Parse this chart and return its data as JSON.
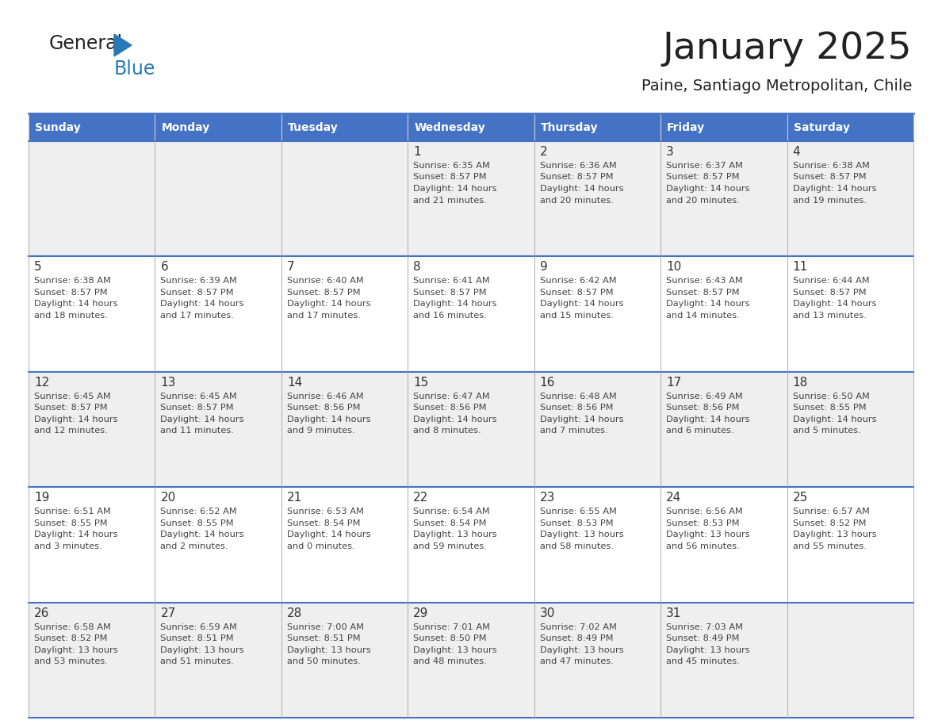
{
  "title": "January 2025",
  "subtitle": "Paine, Santiago Metropolitan, Chile",
  "days_of_week": [
    "Sunday",
    "Monday",
    "Tuesday",
    "Wednesday",
    "Thursday",
    "Friday",
    "Saturday"
  ],
  "header_bg": "#4472C4",
  "header_text": "#FFFFFF",
  "row_bg_odd": "#EFEFEF",
  "row_bg_even": "#FFFFFF",
  "cell_text_color": "#444444",
  "day_number_color": "#333333",
  "logo_general_color": "#222222",
  "logo_blue_color": "#2979B8",
  "calendar": [
    [
      null,
      null,
      null,
      {
        "day": 1,
        "sunrise": "6:35 AM",
        "sunset": "8:57 PM",
        "daylight_h": "14 hours",
        "daylight_m": "and 21 minutes."
      },
      {
        "day": 2,
        "sunrise": "6:36 AM",
        "sunset": "8:57 PM",
        "daylight_h": "14 hours",
        "daylight_m": "and 20 minutes."
      },
      {
        "day": 3,
        "sunrise": "6:37 AM",
        "sunset": "8:57 PM",
        "daylight_h": "14 hours",
        "daylight_m": "and 20 minutes."
      },
      {
        "day": 4,
        "sunrise": "6:38 AM",
        "sunset": "8:57 PM",
        "daylight_h": "14 hours",
        "daylight_m": "and 19 minutes."
      }
    ],
    [
      {
        "day": 5,
        "sunrise": "6:38 AM",
        "sunset": "8:57 PM",
        "daylight_h": "14 hours",
        "daylight_m": "and 18 minutes."
      },
      {
        "day": 6,
        "sunrise": "6:39 AM",
        "sunset": "8:57 PM",
        "daylight_h": "14 hours",
        "daylight_m": "and 17 minutes."
      },
      {
        "day": 7,
        "sunrise": "6:40 AM",
        "sunset": "8:57 PM",
        "daylight_h": "14 hours",
        "daylight_m": "and 17 minutes."
      },
      {
        "day": 8,
        "sunrise": "6:41 AM",
        "sunset": "8:57 PM",
        "daylight_h": "14 hours",
        "daylight_m": "and 16 minutes."
      },
      {
        "day": 9,
        "sunrise": "6:42 AM",
        "sunset": "8:57 PM",
        "daylight_h": "14 hours",
        "daylight_m": "and 15 minutes."
      },
      {
        "day": 10,
        "sunrise": "6:43 AM",
        "sunset": "8:57 PM",
        "daylight_h": "14 hours",
        "daylight_m": "and 14 minutes."
      },
      {
        "day": 11,
        "sunrise": "6:44 AM",
        "sunset": "8:57 PM",
        "daylight_h": "14 hours",
        "daylight_m": "and 13 minutes."
      }
    ],
    [
      {
        "day": 12,
        "sunrise": "6:45 AM",
        "sunset": "8:57 PM",
        "daylight_h": "14 hours",
        "daylight_m": "and 12 minutes."
      },
      {
        "day": 13,
        "sunrise": "6:45 AM",
        "sunset": "8:57 PM",
        "daylight_h": "14 hours",
        "daylight_m": "and 11 minutes."
      },
      {
        "day": 14,
        "sunrise": "6:46 AM",
        "sunset": "8:56 PM",
        "daylight_h": "14 hours",
        "daylight_m": "and 9 minutes."
      },
      {
        "day": 15,
        "sunrise": "6:47 AM",
        "sunset": "8:56 PM",
        "daylight_h": "14 hours",
        "daylight_m": "and 8 minutes."
      },
      {
        "day": 16,
        "sunrise": "6:48 AM",
        "sunset": "8:56 PM",
        "daylight_h": "14 hours",
        "daylight_m": "and 7 minutes."
      },
      {
        "day": 17,
        "sunrise": "6:49 AM",
        "sunset": "8:56 PM",
        "daylight_h": "14 hours",
        "daylight_m": "and 6 minutes."
      },
      {
        "day": 18,
        "sunrise": "6:50 AM",
        "sunset": "8:55 PM",
        "daylight_h": "14 hours",
        "daylight_m": "and 5 minutes."
      }
    ],
    [
      {
        "day": 19,
        "sunrise": "6:51 AM",
        "sunset": "8:55 PM",
        "daylight_h": "14 hours",
        "daylight_m": "and 3 minutes."
      },
      {
        "day": 20,
        "sunrise": "6:52 AM",
        "sunset": "8:55 PM",
        "daylight_h": "14 hours",
        "daylight_m": "and 2 minutes."
      },
      {
        "day": 21,
        "sunrise": "6:53 AM",
        "sunset": "8:54 PM",
        "daylight_h": "14 hours",
        "daylight_m": "and 0 minutes."
      },
      {
        "day": 22,
        "sunrise": "6:54 AM",
        "sunset": "8:54 PM",
        "daylight_h": "13 hours",
        "daylight_m": "and 59 minutes."
      },
      {
        "day": 23,
        "sunrise": "6:55 AM",
        "sunset": "8:53 PM",
        "daylight_h": "13 hours",
        "daylight_m": "and 58 minutes."
      },
      {
        "day": 24,
        "sunrise": "6:56 AM",
        "sunset": "8:53 PM",
        "daylight_h": "13 hours",
        "daylight_m": "and 56 minutes."
      },
      {
        "day": 25,
        "sunrise": "6:57 AM",
        "sunset": "8:52 PM",
        "daylight_h": "13 hours",
        "daylight_m": "and 55 minutes."
      }
    ],
    [
      {
        "day": 26,
        "sunrise": "6:58 AM",
        "sunset": "8:52 PM",
        "daylight_h": "13 hours",
        "daylight_m": "and 53 minutes."
      },
      {
        "day": 27,
        "sunrise": "6:59 AM",
        "sunset": "8:51 PM",
        "daylight_h": "13 hours",
        "daylight_m": "and 51 minutes."
      },
      {
        "day": 28,
        "sunrise": "7:00 AM",
        "sunset": "8:51 PM",
        "daylight_h": "13 hours",
        "daylight_m": "and 50 minutes."
      },
      {
        "day": 29,
        "sunrise": "7:01 AM",
        "sunset": "8:50 PM",
        "daylight_h": "13 hours",
        "daylight_m": "and 48 minutes."
      },
      {
        "day": 30,
        "sunrise": "7:02 AM",
        "sunset": "8:49 PM",
        "daylight_h": "13 hours",
        "daylight_m": "and 47 minutes."
      },
      {
        "day": 31,
        "sunrise": "7:03 AM",
        "sunset": "8:49 PM",
        "daylight_h": "13 hours",
        "daylight_m": "and 45 minutes."
      },
      null
    ]
  ]
}
